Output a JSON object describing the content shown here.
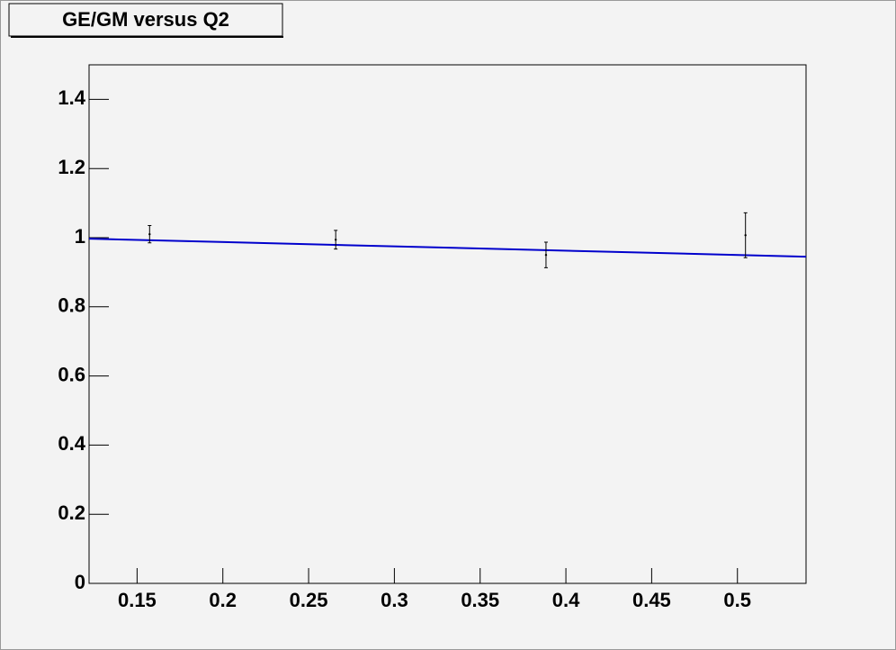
{
  "chart_data": {
    "type": "scatter",
    "title": "GE/GM versus Q2",
    "x": [
      0.1573,
      0.2658,
      0.3884,
      0.5047
    ],
    "values": [
      1.01,
      0.994,
      0.95,
      1.007
    ],
    "errors": [
      0.025,
      0.027,
      0.037,
      0.065
    ],
    "color": "#000000",
    "fit": {
      "x": [
        0.122,
        0.54
      ],
      "values": [
        0.997,
        0.945
      ],
      "color": "#0000cc"
    },
    "xlim": [
      0.122,
      0.54
    ],
    "xticks": [
      0.15,
      0.2,
      0.25,
      0.3,
      0.35,
      0.4,
      0.45,
      0.5
    ],
    "ylim": [
      0,
      1.5
    ],
    "yticks": [
      0,
      0.2,
      0.4,
      0.6,
      0.8,
      1,
      1.2,
      1.4
    ],
    "grid": false
  }
}
